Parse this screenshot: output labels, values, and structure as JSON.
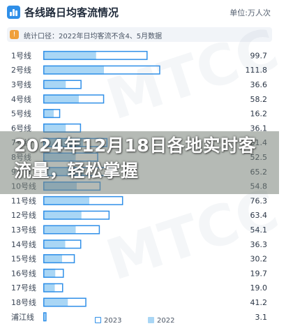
{
  "header": {
    "title": "各线路日均客流情况",
    "unit": "单位:万人次",
    "icon": "bar-chart-icon"
  },
  "notice": {
    "text": "统计口径：2022年日均客流不含4、5月数据",
    "icon": "info-icon"
  },
  "overlay": {
    "text": "2024年12月18日各地实时客流量，轻松掌握"
  },
  "colors": {
    "series2023": "#2f8fe8",
    "series2022": "#a9d6f5",
    "overlay": "#7c8678"
  },
  "chart_data": {
    "type": "bar",
    "orientation": "horizontal",
    "categories": [
      "1号线",
      "2号线",
      "3号线",
      "4号线",
      "5号线",
      "6号线",
      "7号线",
      "8号线",
      "9号线",
      "10号线",
      "11号线",
      "12号线",
      "13号线",
      "14号线",
      "15号线",
      "16号线",
      "17号线",
      "18号线",
      "浦江线"
    ],
    "series": [
      {
        "name": "2023",
        "values": [
          99.7,
          111.8,
          36.6,
          58.2,
          16.2,
          36.1,
          61.4,
          52.5,
          65.2,
          54.8,
          76.3,
          63.4,
          54.1,
          36.3,
          30.2,
          19.7,
          19.0,
          41.2,
          3.1
        ]
      },
      {
        "name": "2022",
        "values": [
          50.5,
          58.0,
          21.5,
          34.0,
          10.0,
          21.5,
          38.0,
          31.0,
          39.0,
          32.0,
          44.0,
          36.5,
          31.0,
          21.0,
          18.0,
          11.5,
          11.0,
          23.5,
          1.8
        ]
      }
    ],
    "value_labels": [
      "99.7",
      "111.8",
      "36.6",
      "58.2",
      "16.2",
      "36.1",
      "61.4",
      "52.5",
      "65.2",
      "54.8",
      "76.3",
      "63.4",
      "54.1",
      "36.3",
      "30.2",
      "19.7",
      "19.0",
      "41.2",
      "3.1"
    ],
    "xlim": [
      0,
      130
    ],
    "legend": {
      "position": "bottom",
      "entries": [
        "2023",
        "2022"
      ]
    },
    "grid": false
  }
}
